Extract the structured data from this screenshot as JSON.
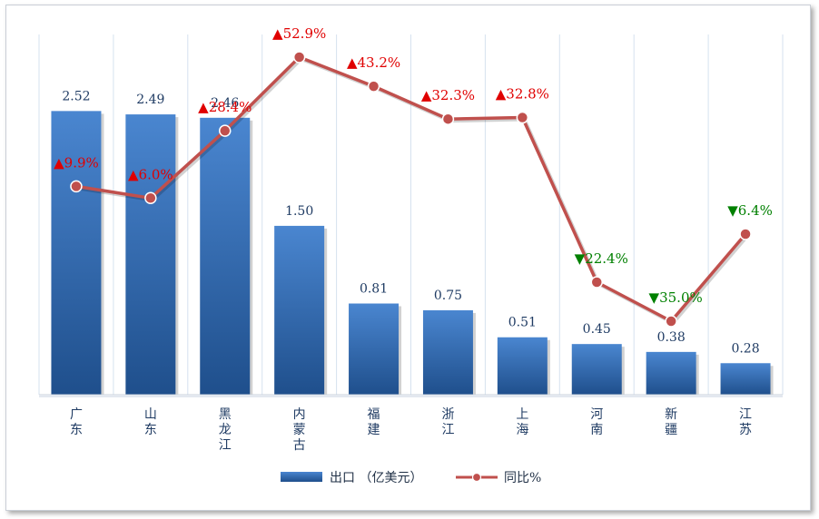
{
  "chart_data": {
    "type": "bar+line",
    "categories": [
      "广东",
      "山东",
      "黑龙江",
      "内蒙古",
      "福建",
      "浙江",
      "上海",
      "河南",
      "新疆",
      "江苏"
    ],
    "series": [
      {
        "name": "出口 （亿美元）",
        "type": "bar",
        "values": [
          2.52,
          2.49,
          2.46,
          1.5,
          0.81,
          0.75,
          0.51,
          0.45,
          0.38,
          0.28
        ]
      },
      {
        "name": "同比%",
        "type": "line",
        "values": [
          9.9,
          6.0,
          28.4,
          52.9,
          43.2,
          32.3,
          32.8,
          -22.4,
          -35.0,
          -6.4
        ]
      }
    ],
    "bar_labels": [
      "2.52",
      "2.49",
      "2.46",
      "1.50",
      "0.81",
      "0.75",
      "0.51",
      "0.45",
      "0.38",
      "0.28"
    ],
    "line_labels": [
      "▲9.9%",
      "▲6.0%",
      "▲28.4%",
      "▲52.9%",
      "▲43.2%",
      "▲32.3%",
      "▲32.8%",
      "▼22.4%",
      "▼35.0%",
      "▼6.4%"
    ],
    "bar_ylim": [
      0,
      3.2
    ],
    "line_ylim": [
      -55,
      70
    ],
    "grid": "vertical",
    "legend": "bottom",
    "colors": {
      "bar_top": "#4a86d0",
      "bar_bottom": "#1f4f8c",
      "line": "#c0504d",
      "up_label": "#e00000",
      "down_label": "#008000",
      "grid": "#d6e2ef",
      "axis_text": "#1f3b63"
    }
  }
}
